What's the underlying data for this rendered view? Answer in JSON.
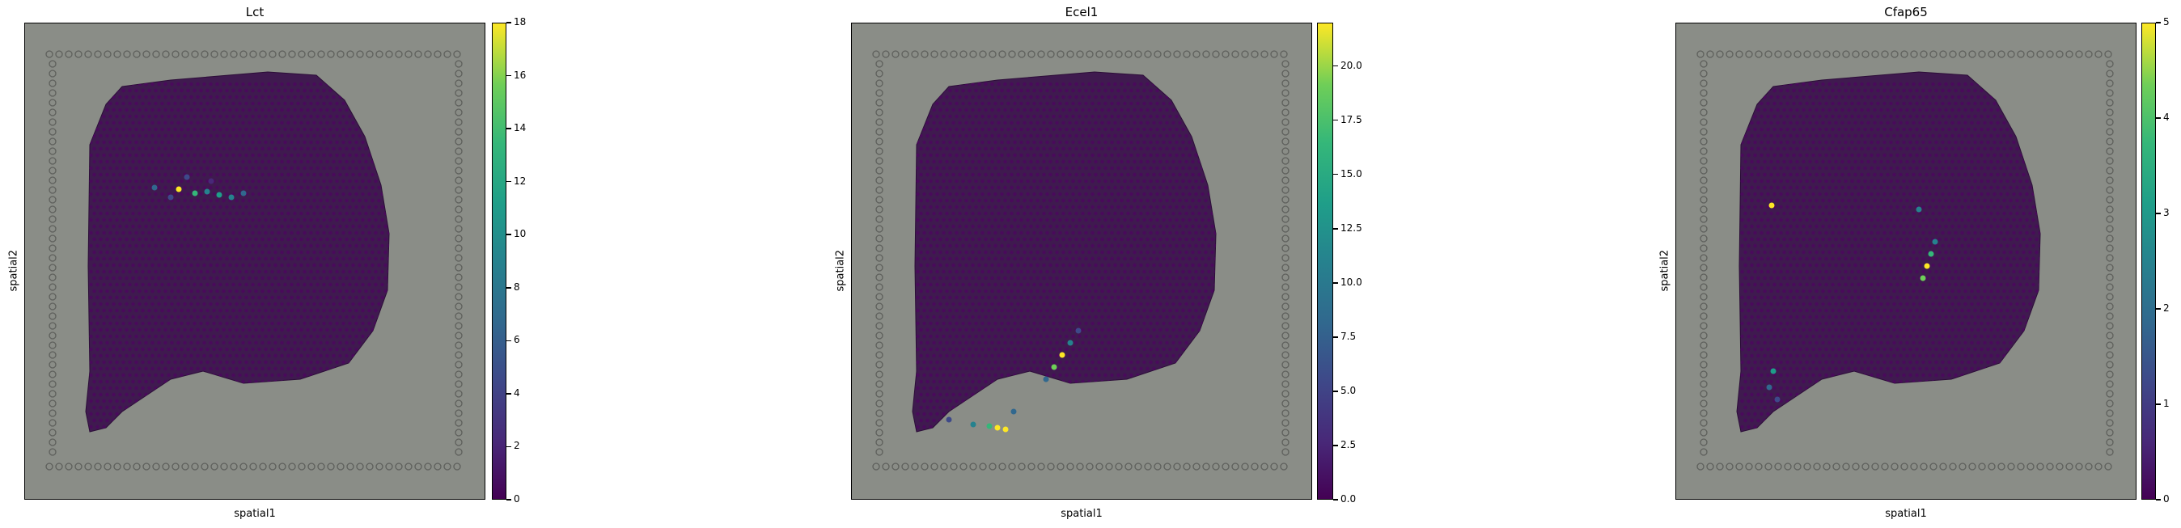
{
  "chart_data": [
    {
      "type": "scatter",
      "title": "Lct",
      "xlabel": "spatial1",
      "ylabel": "spatial2",
      "colorbar": {
        "colormap": "viridis",
        "range": [
          0,
          18
        ],
        "ticks": [
          "0",
          "2",
          "4",
          "6",
          "8",
          "10",
          "12",
          "14",
          "16",
          "18"
        ]
      },
      "hotspots": "hippocampal band, upper-left region"
    },
    {
      "type": "scatter",
      "title": "Ecel1",
      "xlabel": "spatial1",
      "ylabel": "spatial2",
      "colorbar": {
        "colormap": "viridis",
        "range": [
          0,
          22
        ],
        "ticks": [
          "0.0",
          "2.5",
          "5.0",
          "7.5",
          "10.0",
          "12.5",
          "15.0",
          "17.5",
          "20.0"
        ]
      },
      "hotspots": "diagonal band lower-middle and lower-left corner"
    },
    {
      "type": "scatter",
      "title": "Cfap65",
      "xlabel": "spatial1",
      "ylabel": "spatial2",
      "colorbar": {
        "colormap": "viridis",
        "range": [
          0,
          5
        ],
        "ticks": [
          "0",
          "1",
          "2",
          "3",
          "4",
          "5"
        ]
      },
      "hotspots": "ventricle edges, center-right and lower-left"
    }
  ],
  "colors": {
    "background_image": "#8a8d87",
    "tissue_low": "#440154",
    "mid": "#31688e",
    "high": "#fde725"
  }
}
